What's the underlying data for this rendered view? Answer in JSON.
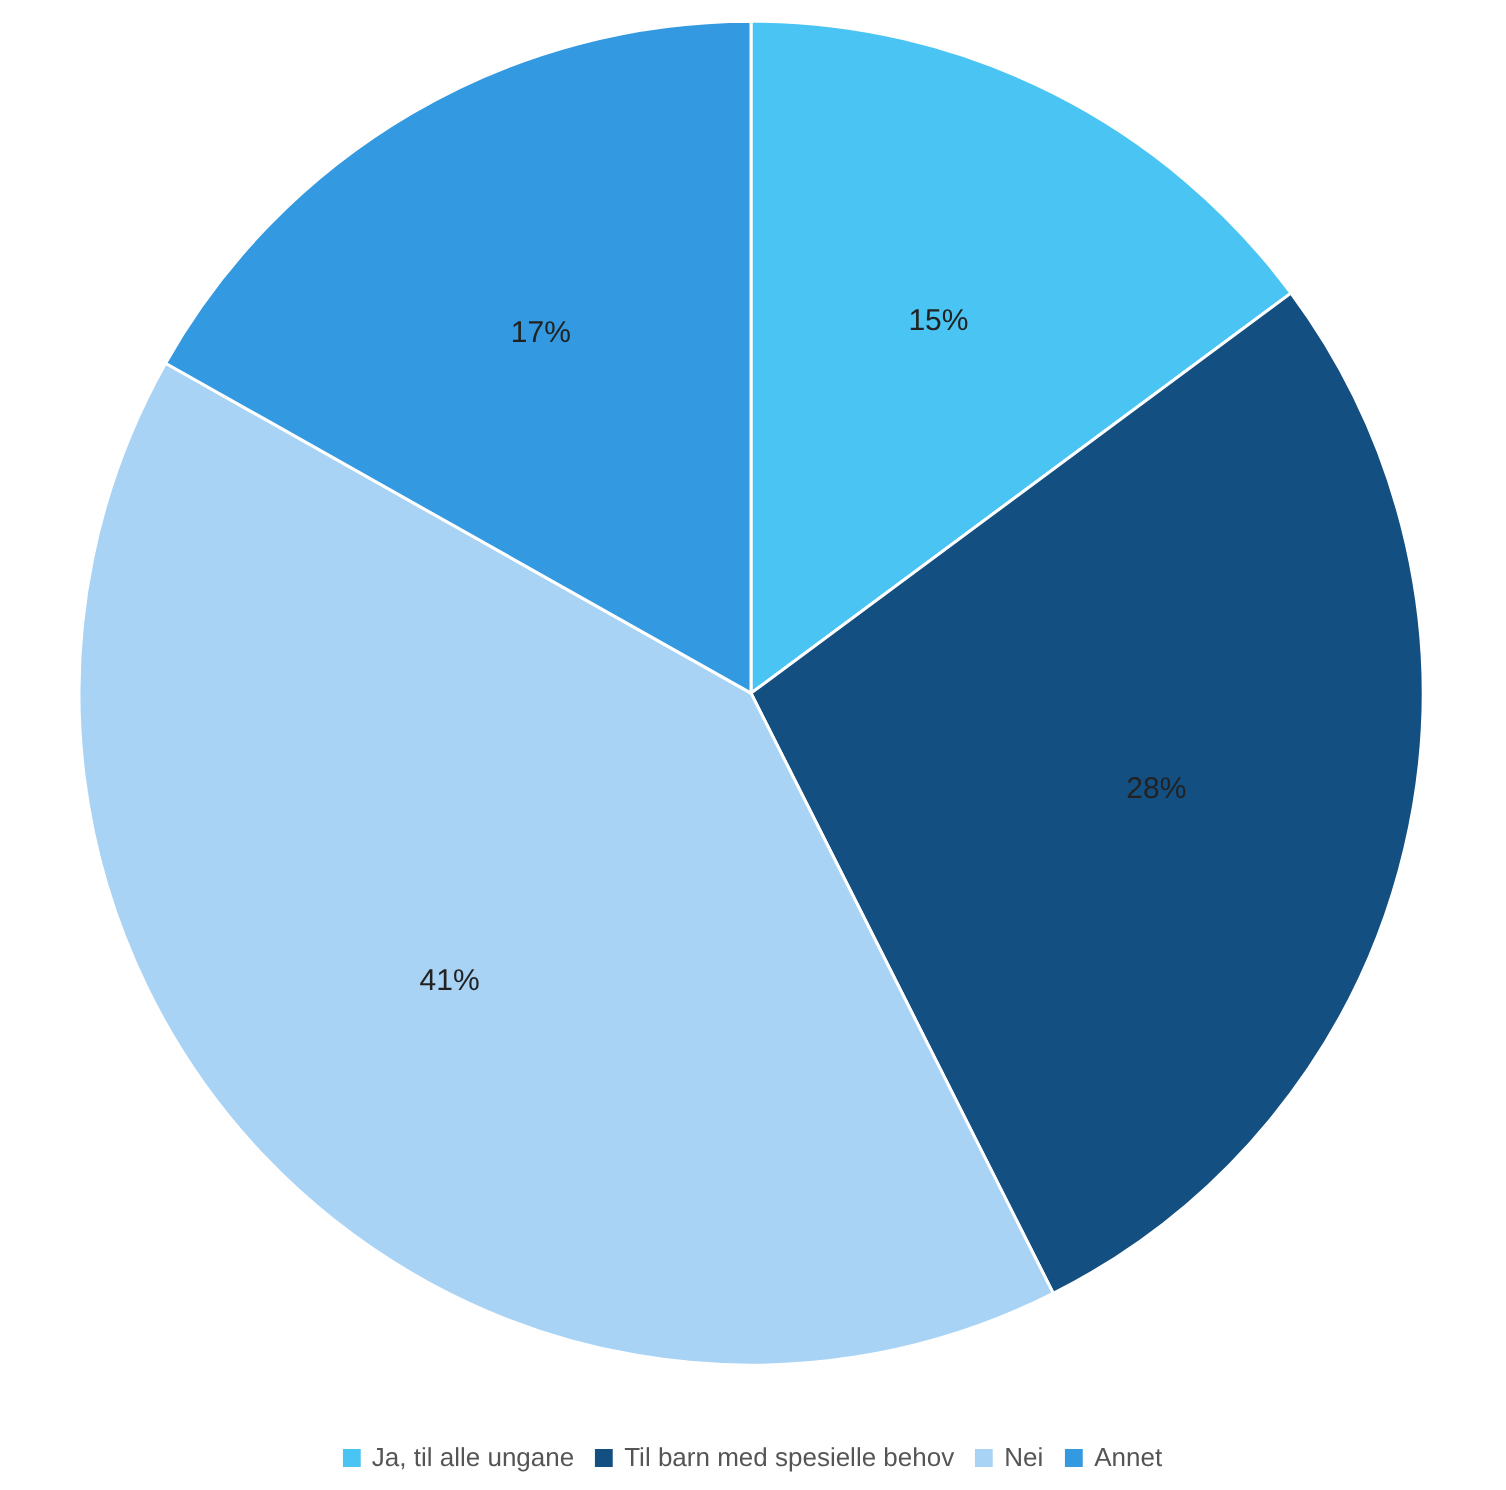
{
  "chart_data": {
    "type": "pie",
    "categories": [
      "Ja, til alle ungane",
      "Til barn med spesielle behov",
      "Nei",
      "Annet"
    ],
    "values": [
      15,
      28,
      41,
      17
    ],
    "colors": [
      "#4ac5f3",
      "#134f80",
      "#a9d3f5",
      "#3399e0"
    ],
    "value_labels": [
      "15%",
      "28%",
      "41%",
      "17%"
    ],
    "legend": "bottom"
  }
}
